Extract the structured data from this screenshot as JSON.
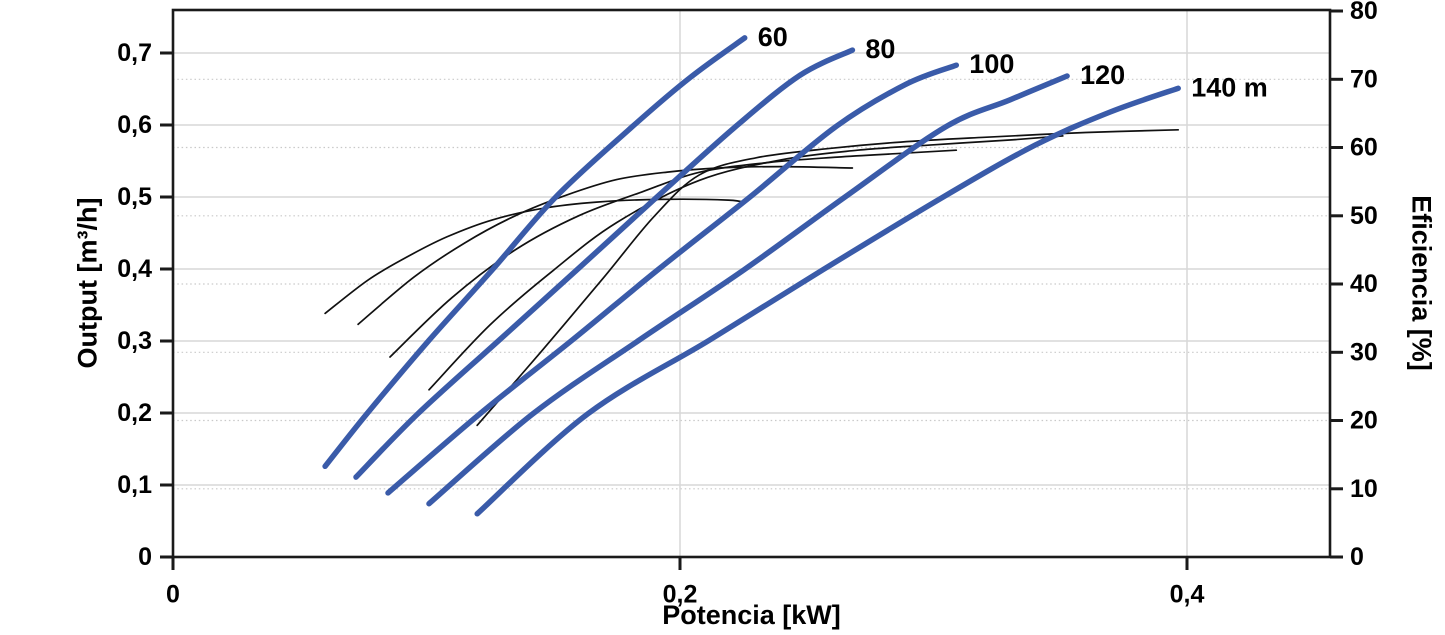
{
  "chart_data": {
    "type": "line",
    "title": "",
    "xlabel": "Potencia [kW]",
    "ylabel_left": "Output [m³/h]",
    "ylabel_right": "Eficiencia [%]",
    "xlim": [
      0,
      0.4564
    ],
    "ylim_left": [
      0,
      0.7597
    ],
    "ylim_right": [
      0,
      80.15
    ],
    "grid": {
      "horizontal_solid": "left-axis majors",
      "horizontal_dotted": "right-axis majors",
      "vertical_solid": "x majors"
    },
    "legend": "none (labels at curve ends)",
    "x_ticks": [
      {
        "v": 0,
        "label": "0"
      },
      {
        "v": 0.2,
        "label": "0,2"
      },
      {
        "v": 0.4,
        "label": "0,4"
      }
    ],
    "y_ticks_left": [
      {
        "v": 0,
        "label": "0"
      },
      {
        "v": 0.1,
        "label": "0,1"
      },
      {
        "v": 0.2,
        "label": "0,2"
      },
      {
        "v": 0.3,
        "label": "0,3"
      },
      {
        "v": 0.4,
        "label": "0,4"
      },
      {
        "v": 0.5,
        "label": "0,5"
      },
      {
        "v": 0.6,
        "label": "0,6"
      },
      {
        "v": 0.7,
        "label": "0,7"
      }
    ],
    "y_ticks_right": [
      {
        "v": 0,
        "label": "0"
      },
      {
        "v": 10,
        "label": "10"
      },
      {
        "v": 20,
        "label": "20"
      },
      {
        "v": 30,
        "label": "30"
      },
      {
        "v": 40,
        "label": "40"
      },
      {
        "v": 50,
        "label": "50"
      },
      {
        "v": 60,
        "label": "60"
      },
      {
        "v": 70,
        "label": "70"
      },
      {
        "v": 80,
        "label": "80"
      }
    ],
    "colors": {
      "head_curves": "#3a5ba9",
      "eff_curves": "#111111",
      "grid_major": "#d7d7d7",
      "grid_dotted": "#c9c9c9",
      "axis": "#1a1a1a",
      "text": "#000000"
    },
    "series": [
      {
        "name": "head-60",
        "kind": "head",
        "axis": "left",
        "label": "60",
        "points": [
          [
            0.06,
            0.126
          ],
          [
            0.0765,
            0.199
          ],
          [
            0.101,
            0.301
          ],
          [
            0.126,
            0.399
          ],
          [
            0.151,
            0.5
          ],
          [
            0.181,
            0.597
          ],
          [
            0.204,
            0.666
          ],
          [
            0.2255,
            0.721
          ]
        ]
      },
      {
        "name": "head-80",
        "kind": "head",
        "axis": "left",
        "label": "80",
        "points": [
          [
            0.0722,
            0.111
          ],
          [
            0.0966,
            0.199
          ],
          [
            0.1286,
            0.301
          ],
          [
            0.1594,
            0.399
          ],
          [
            0.1909,
            0.5
          ],
          [
            0.2217,
            0.597
          ],
          [
            0.2473,
            0.669
          ],
          [
            0.268,
            0.704
          ]
        ]
      },
      {
        "name": "head-100",
        "kind": "head",
        "axis": "left",
        "label": "100",
        "points": [
          [
            0.0848,
            0.089
          ],
          [
            0.1211,
            0.199
          ],
          [
            0.1574,
            0.301
          ],
          [
            0.1913,
            0.399
          ],
          [
            0.2276,
            0.5
          ],
          [
            0.2612,
            0.597
          ],
          [
            0.2888,
            0.656
          ],
          [
            0.309,
            0.683
          ]
        ]
      },
      {
        "name": "head-120",
        "kind": "head",
        "axis": "left",
        "label": "120",
        "points": [
          [
            0.101,
            0.074
          ],
          [
            0.142,
            0.199
          ],
          [
            0.1838,
            0.301
          ],
          [
            0.2253,
            0.399
          ],
          [
            0.2651,
            0.5
          ],
          [
            0.3046,
            0.597
          ],
          [
            0.3302,
            0.635
          ],
          [
            0.3527,
            0.668
          ]
        ]
      },
      {
        "name": "head-140",
        "kind": "head",
        "axis": "left",
        "label": "140 m",
        "points": [
          [
            0.12,
            0.06
          ],
          [
            0.1637,
            0.199
          ],
          [
            0.2115,
            0.301
          ],
          [
            0.2564,
            0.399
          ],
          [
            0.3038,
            0.5
          ],
          [
            0.3401,
            0.572
          ],
          [
            0.3697,
            0.618
          ],
          [
            0.3965,
            0.651
          ]
        ]
      },
      {
        "name": "eff-60",
        "kind": "efficiency",
        "axis": "right",
        "label": "",
        "points": [
          [
            0.06,
            35.7
          ],
          [
            0.077,
            40.6
          ],
          [
            0.092,
            43.9
          ],
          [
            0.108,
            46.9
          ],
          [
            0.126,
            49.4
          ],
          [
            0.146,
            51.1
          ],
          [
            0.167,
            52.0
          ],
          [
            0.192,
            52.4
          ],
          [
            0.219,
            52.3
          ],
          [
            0.2255,
            51.9
          ]
        ]
      },
      {
        "name": "eff-80",
        "kind": "efficiency",
        "axis": "right",
        "label": "",
        "points": [
          [
            0.073,
            34.1
          ],
          [
            0.095,
            41.0
          ],
          [
            0.115,
            46.0
          ],
          [
            0.135,
            50.0
          ],
          [
            0.155,
            53.0
          ],
          [
            0.175,
            55.3
          ],
          [
            0.195,
            56.4
          ],
          [
            0.215,
            57.0
          ],
          [
            0.24,
            57.2
          ],
          [
            0.268,
            57.0
          ]
        ]
      },
      {
        "name": "eff-100",
        "kind": "efficiency",
        "axis": "right",
        "label": "",
        "points": [
          [
            0.0856,
            29.3
          ],
          [
            0.11,
            38.0
          ],
          [
            0.135,
            45.0
          ],
          [
            0.16,
            50.0
          ],
          [
            0.185,
            53.5
          ],
          [
            0.208,
            56.4
          ],
          [
            0.235,
            57.8
          ],
          [
            0.262,
            58.6
          ],
          [
            0.285,
            59.1
          ],
          [
            0.309,
            59.6
          ]
        ]
      },
      {
        "name": "eff-120",
        "kind": "efficiency",
        "axis": "right",
        "label": "",
        "points": [
          [
            0.101,
            24.5
          ],
          [
            0.125,
            34.0
          ],
          [
            0.15,
            42.0
          ],
          [
            0.175,
            49.0
          ],
          [
            0.2077,
            55.2
          ],
          [
            0.24,
            58.2
          ],
          [
            0.27,
            59.6
          ],
          [
            0.3,
            60.4
          ],
          [
            0.33,
            61.1
          ],
          [
            0.351,
            61.7
          ]
        ]
      },
      {
        "name": "eff-140",
        "kind": "efficiency",
        "axis": "right",
        "label": "",
        "points": [
          [
            0.12,
            19.3
          ],
          [
            0.145,
            30.0
          ],
          [
            0.17,
            41.0
          ],
          [
            0.19,
            50.0
          ],
          [
            0.2077,
            56.0
          ],
          [
            0.23,
            58.5
          ],
          [
            0.26,
            59.9
          ],
          [
            0.287,
            60.8
          ],
          [
            0.32,
            61.5
          ],
          [
            0.36,
            62.2
          ],
          [
            0.3965,
            62.6
          ]
        ]
      }
    ]
  }
}
